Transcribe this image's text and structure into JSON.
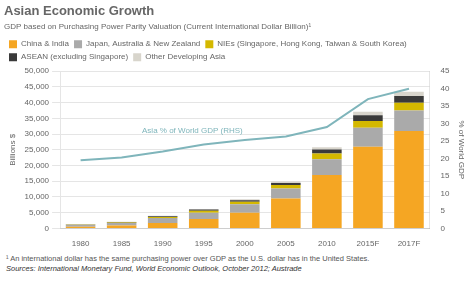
{
  "chart_data": {
    "type": "bar",
    "stacked": true,
    "title": "Asian Economic Growth",
    "subtitle": "GDP based on Purchasing Power Parity Valuation (Current International Dollar Billion)¹",
    "footnote": "¹ An international dollar has the same purchasing power over GDP as the U.S. dollar has in the United States.",
    "sources": "Sources:  International Monetary Fund, World Economic Outlook, October 2012; Austrade",
    "categories": [
      "1980",
      "1985",
      "1990",
      "1995",
      "2000",
      "2005",
      "2010",
      "2015F",
      "2017F"
    ],
    "series": [
      {
        "name": "China & India",
        "color": "#F5A623",
        "values": [
          550,
          950,
          1700,
          3000,
          5000,
          9500,
          17000,
          26000,
          31000
        ]
      },
      {
        "name": "Japan, Australia & New Zealand",
        "color": "#AAAAAA",
        "values": [
          550,
          750,
          1600,
          2000,
          2700,
          3200,
          5000,
          6000,
          6500
        ]
      },
      {
        "name": "NIEs (Singapore, Hong Kong, Taiwan & South Korea)",
        "color": "#D4B800",
        "values": [
          90,
          180,
          350,
          600,
          800,
          1100,
          1800,
          2200,
          2500
        ]
      },
      {
        "name": "ASEAN (excluding Singapore)",
        "color": "#3A3A3A",
        "values": [
          70,
          130,
          220,
          380,
          460,
          650,
          1300,
          1800,
          2100
        ]
      },
      {
        "name": "Other Developing Asia",
        "color": "#D8D5CC",
        "values": [
          40,
          90,
          130,
          220,
          320,
          450,
          700,
          1100,
          1400
        ]
      },
      {
        "name": "Asia % of World GDP (RHS)",
        "type": "line",
        "axis": "y2",
        "color": "#7FB5BB",
        "values": [
          19.5,
          20.3,
          22.0,
          24.0,
          25.3,
          26.3,
          29.0,
          37.0,
          40.0
        ]
      }
    ],
    "ylabel": "Billions $",
    "y2label": "% of World GDP",
    "ylim": [
      0,
      50000
    ],
    "yticks": [
      0,
      {
        "value": 5000,
        "label": "5,000"
      },
      {
        "value": 10000,
        "label": "10,000"
      },
      {
        "value": 15000,
        "label": "15,000"
      },
      {
        "value": 20000,
        "label": "20,000"
      },
      {
        "value": 25000,
        "label": "25,000"
      },
      {
        "value": 30000,
        "label": "30,000"
      },
      {
        "value": 35000,
        "label": "35,000"
      },
      {
        "value": 40000,
        "label": "40,000"
      },
      {
        "value": 45000,
        "label": "45,000"
      },
      {
        "value": 50000,
        "label": "50,000"
      }
    ],
    "y2lim": [
      0,
      45
    ],
    "y2ticks": [
      0,
      5,
      10,
      15,
      20,
      25,
      30,
      35,
      40,
      45
    ],
    "grid": true,
    "legend": "upper left"
  }
}
